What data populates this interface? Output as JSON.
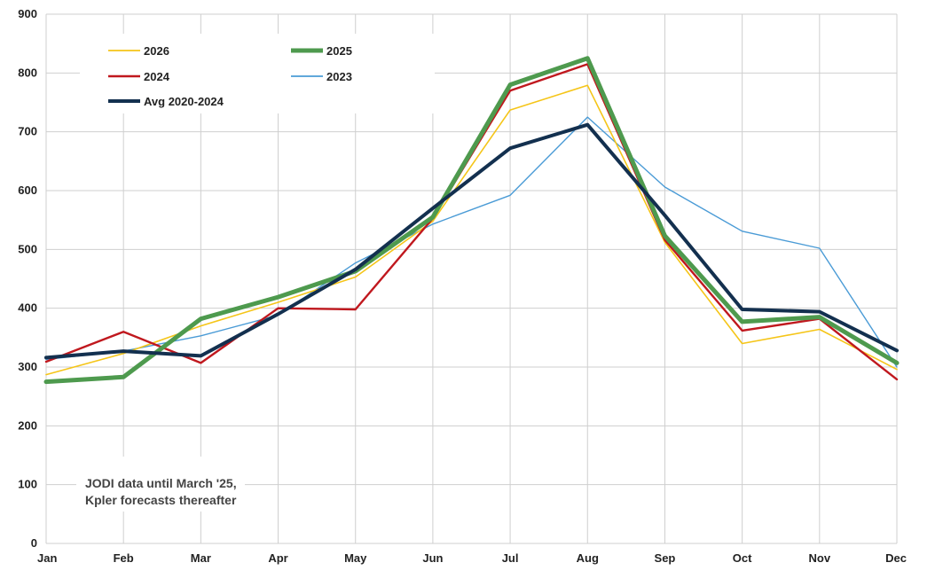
{
  "chart_data": {
    "type": "line",
    "title": "",
    "xlabel": "",
    "ylabel": "",
    "categories": [
      "Jan",
      "Feb",
      "Mar",
      "Apr",
      "May",
      "Jun",
      "Jul",
      "Aug",
      "Sep",
      "Oct",
      "Nov",
      "Dec"
    ],
    "ylim": [
      0,
      900
    ],
    "yticks": [
      0,
      100,
      200,
      300,
      400,
      500,
      600,
      700,
      800,
      900
    ],
    "grid": true,
    "legend_position": "top-left",
    "series": [
      {
        "name": "2026",
        "color": "#f5c518",
        "values": [
          287,
          323,
          370,
          410,
          453,
          548,
          737,
          779,
          512,
          340,
          364,
          296
        ]
      },
      {
        "name": "2025",
        "color": "#4e9a4e",
        "values": [
          275,
          283,
          382,
          419,
          463,
          555,
          780,
          825,
          523,
          377,
          385,
          307
        ]
      },
      {
        "name": "2024",
        "color": "#c0181e",
        "values": [
          309,
          360,
          307,
          400,
          398,
          553,
          770,
          815,
          516,
          362,
          382,
          279
        ]
      },
      {
        "name": "2023",
        "color": "#4a9bd6",
        "values": [
          313,
          327,
          353,
          388,
          477,
          543,
          592,
          725,
          606,
          531,
          502,
          300
        ]
      },
      {
        "name": "Avg 2020-2024",
        "color": "#13304f",
        "values": [
          316,
          327,
          319,
          390,
          466,
          570,
          672,
          712,
          558,
          398,
          394,
          328
        ]
      }
    ],
    "annotation": [
      "JODI data until March '25,",
      "Kpler forecasts thereafter"
    ]
  }
}
